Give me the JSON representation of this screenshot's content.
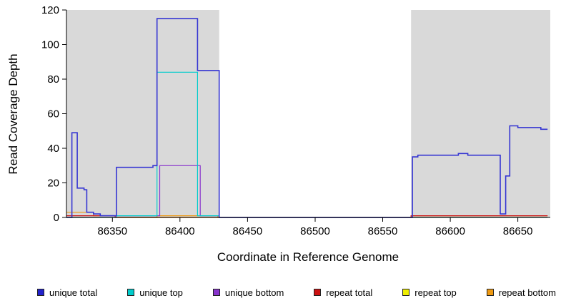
{
  "chart_data": {
    "type": "line",
    "step": true,
    "xlabel": "Coordinate in Reference Genome",
    "ylabel": "Read Coverage Depth",
    "xlim": [
      86316,
      86674
    ],
    "ylim": [
      0,
      120
    ],
    "x_ticks": [
      86350,
      86400,
      86450,
      86500,
      86550,
      86600,
      86650
    ],
    "y_ticks": [
      0,
      20,
      40,
      60,
      80,
      100,
      120
    ],
    "grid": false,
    "shaded_regions": [
      {
        "x_start": 86316,
        "x_end": 86429,
        "color": "#d9d9d9"
      },
      {
        "x_start": 86571,
        "x_end": 86674,
        "color": "#d9d9d9"
      }
    ],
    "series": [
      {
        "name": "repeat top",
        "color": "#eeee00",
        "width": 1.2,
        "points": [
          [
            86316,
            0
          ],
          [
            86672,
            0
          ]
        ]
      },
      {
        "name": "repeat bottom",
        "color": "#ee9911",
        "width": 1.2,
        "points": [
          [
            86316,
            3
          ],
          [
            86336,
            1
          ],
          [
            86352,
            0
          ],
          [
            86383,
            1
          ],
          [
            86428,
            0
          ],
          [
            86571,
            1
          ],
          [
            86672,
            1
          ]
        ]
      },
      {
        "name": "repeat total",
        "color": "#cc1111",
        "width": 1.2,
        "points": [
          [
            86316,
            1
          ],
          [
            86352,
            0
          ],
          [
            86571,
            1
          ],
          [
            86672,
            1
          ]
        ]
      },
      {
        "name": "unique bottom",
        "color": "#8833cc",
        "width": 1.2,
        "points": [
          [
            86316,
            0
          ],
          [
            86353,
            1
          ],
          [
            86385,
            30
          ],
          [
            86415,
            1
          ],
          [
            86429,
            0
          ],
          [
            86672,
            0
          ]
        ]
      },
      {
        "name": "unique top",
        "color": "#00cccc",
        "width": 1.2,
        "points": [
          [
            86316,
            0
          ],
          [
            86353,
            1
          ],
          [
            86383,
            84
          ],
          [
            86413,
            1
          ],
          [
            86429,
            0
          ],
          [
            86672,
            0
          ]
        ]
      },
      {
        "name": "unique total",
        "color": "#3535d2",
        "width": 1.6,
        "points": [
          [
            86316,
            0
          ],
          [
            86320,
            49
          ],
          [
            86324,
            17
          ],
          [
            86329,
            16
          ],
          [
            86331,
            3
          ],
          [
            86336,
            2
          ],
          [
            86341,
            1
          ],
          [
            86353,
            29
          ],
          [
            86380,
            30
          ],
          [
            86383,
            115
          ],
          [
            86413,
            85
          ],
          [
            86429,
            0
          ],
          [
            86572,
            35
          ],
          [
            86576,
            36
          ],
          [
            86606,
            37
          ],
          [
            86613,
            36
          ],
          [
            86637,
            2
          ],
          [
            86641,
            24
          ],
          [
            86644,
            53
          ],
          [
            86650,
            52
          ],
          [
            86667,
            51
          ],
          [
            86672,
            51
          ]
        ]
      }
    ]
  },
  "legend": {
    "items": [
      {
        "label": "unique total",
        "color": "#2222cc"
      },
      {
        "label": "unique top",
        "color": "#00cccc"
      },
      {
        "label": "unique bottom",
        "color": "#8833cc"
      },
      {
        "label": "repeat total",
        "color": "#cc1111"
      },
      {
        "label": "repeat top",
        "color": "#eeee00"
      },
      {
        "label": "repeat bottom",
        "color": "#ee9911"
      }
    ]
  }
}
